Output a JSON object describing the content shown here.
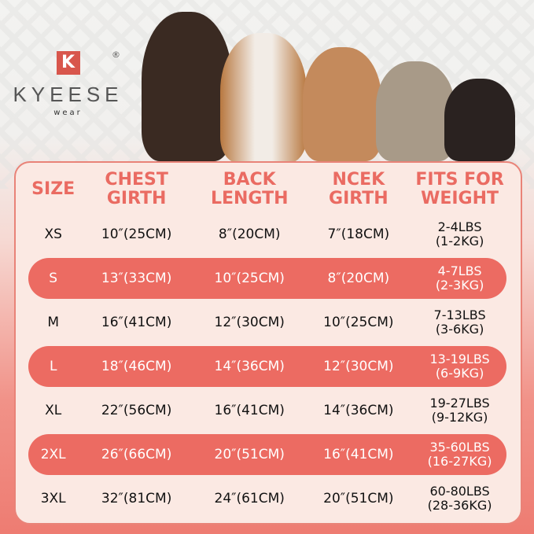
{
  "brand": {
    "logo_letter": "K",
    "name": "KYEESE",
    "sub": "wear",
    "registered": "®"
  },
  "colors": {
    "accent": "#ec6b62",
    "panel": "#fbe9e3",
    "heading": "#ea6b62"
  },
  "table": {
    "headers": [
      "SIZE",
      "CHEST GIRTH",
      "BACK LENGTH",
      "NCEK GIRTH",
      "FITS FOR WEIGHT"
    ],
    "rows": [
      {
        "size": "XS",
        "chest": "10″(25CM)",
        "back": "8″(20CM)",
        "neck": "7″(18CM)",
        "weight_lbs": "2-4LBS",
        "weight_kg": "(1-2KG)"
      },
      {
        "size": "S",
        "chest": "13″(33CM)",
        "back": "10″(25CM)",
        "neck": "8″(20CM)",
        "weight_lbs": "4-7LBS",
        "weight_kg": "(2-3KG)"
      },
      {
        "size": "M",
        "chest": "16″(41CM)",
        "back": "12″(30CM)",
        "neck": "10″(25CM)",
        "weight_lbs": "7-13LBS",
        "weight_kg": "(3-6KG)"
      },
      {
        "size": "L",
        "chest": "18″(46CM)",
        "back": "14″(36CM)",
        "neck": "12″(30CM)",
        "weight_lbs": "13-19LBS",
        "weight_kg": "(6-9KG)"
      },
      {
        "size": "XL",
        "chest": "22″(56CM)",
        "back": "16″(41CM)",
        "neck": "14″(36CM)",
        "weight_lbs": "19-27LBS",
        "weight_kg": "(9-12KG)"
      },
      {
        "size": "2XL",
        "chest": "26″(66CM)",
        "back": "20″(51CM)",
        "neck": "16″(41CM)",
        "weight_lbs": "35-60LBS",
        "weight_kg": "(16-27KG)"
      },
      {
        "size": "3XL",
        "chest": "32″(81CM)",
        "back": "24″(61CM)",
        "neck": "20″(51CM)",
        "weight_lbs": "60-80LBS",
        "weight_kg": "(28-36KG)"
      }
    ]
  }
}
